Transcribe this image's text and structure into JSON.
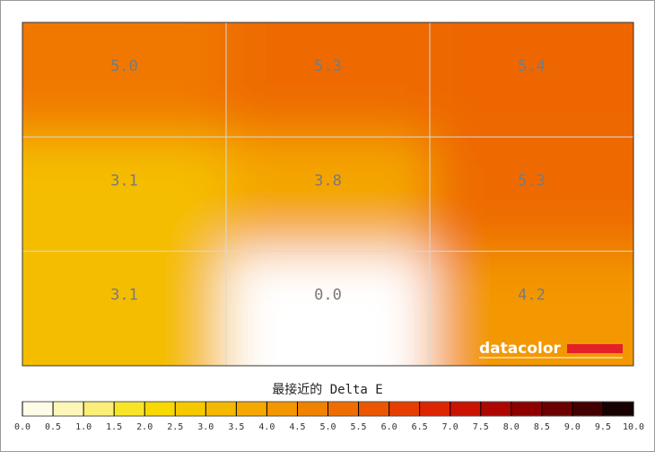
{
  "chart_data": {
    "type": "heatmap",
    "title": "最接近的 Delta E",
    "logo": "datacolor",
    "values": [
      [
        5.0,
        5.3,
        5.4
      ],
      [
        3.1,
        3.8,
        5.3
      ],
      [
        3.1,
        0.0,
        4.2
      ]
    ],
    "value_labels": [
      [
        "5.0",
        "5.3",
        "5.4"
      ],
      [
        "3.1",
        "3.8",
        "5.3"
      ],
      [
        "3.1",
        "0.0",
        "4.2"
      ]
    ],
    "clim": [
      0,
      10
    ],
    "colorscale": [
      "#ffffff",
      "#fbf3a0",
      "#f7e000",
      "#f5c000",
      "#f4a000",
      "#f07800",
      "#ea4a00",
      "#d81800",
      "#a00000",
      "#580000",
      "#000000"
    ],
    "cticks": [
      {
        "value": 0,
        "label": "0.0"
      },
      {
        "value": 0.5,
        "label": "0.5"
      },
      {
        "value": 1,
        "label": "1.0"
      },
      {
        "value": 1.5,
        "label": "1.5"
      },
      {
        "value": 2,
        "label": "2.0"
      },
      {
        "value": 2.5,
        "label": "2.5"
      },
      {
        "value": 3,
        "label": "3.0"
      },
      {
        "value": 3.5,
        "label": "3.5"
      },
      {
        "value": 4,
        "label": "4.0"
      },
      {
        "value": 4.5,
        "label": "4.5"
      },
      {
        "value": 5,
        "label": "5.0"
      },
      {
        "value": 5.5,
        "label": "5.5"
      },
      {
        "value": 6,
        "label": "6.0"
      },
      {
        "value": 6.5,
        "label": "6.5"
      },
      {
        "value": 7,
        "label": "7.0"
      },
      {
        "value": 7.5,
        "label": "7.5"
      },
      {
        "value": 8,
        "label": "8.0"
      },
      {
        "value": 8.5,
        "label": "8.5"
      },
      {
        "value": 9,
        "label": "9.0"
      },
      {
        "value": 9.5,
        "label": "9.5"
      },
      {
        "value": 10,
        "label": "10.0"
      }
    ],
    "grid": true
  }
}
